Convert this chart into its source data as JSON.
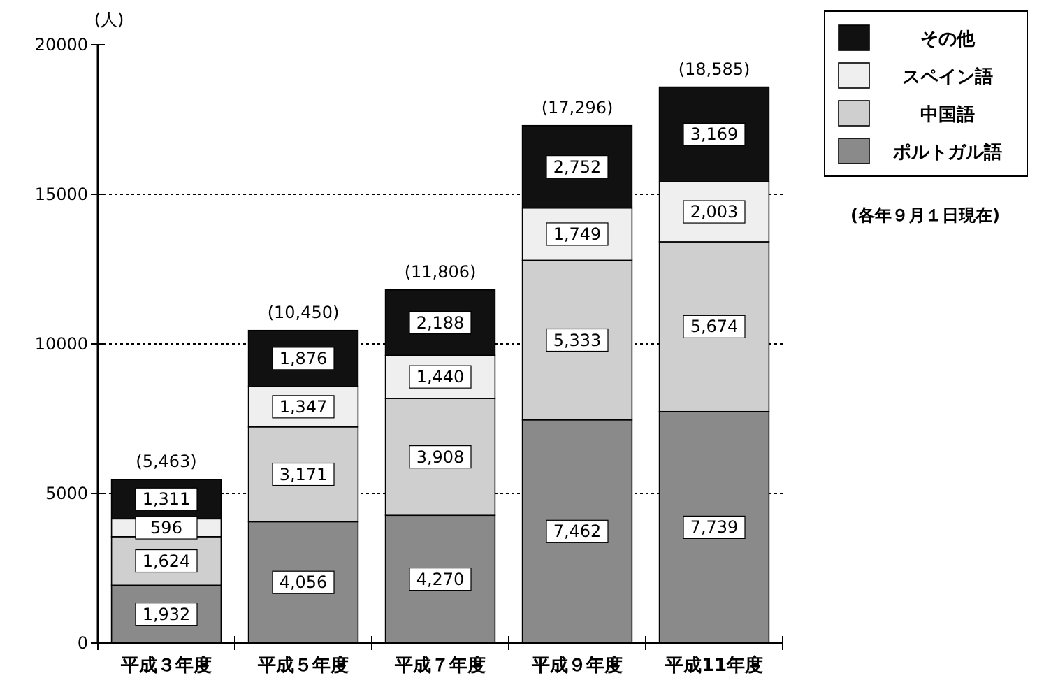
{
  "chart_data": {
    "type": "bar",
    "stacked": true,
    "ylabel": "(人)",
    "categories": [
      "平成３年度",
      "平成５年度",
      "平成７年度",
      "平成９年度",
      "平成11年度"
    ],
    "series": [
      {
        "name": "ポルトガル語",
        "color": "#8a8a8a",
        "values": [
          1932,
          4056,
          4270,
          7462,
          7739
        ],
        "value_labels": [
          "1,932",
          "4,056",
          "4,270",
          "7,462",
          "7,739"
        ]
      },
      {
        "name": "中国語",
        "color": "#cfcfcf",
        "values": [
          1624,
          3171,
          3908,
          5333,
          5674
        ],
        "value_labels": [
          "1,624",
          "3,171",
          "3,908",
          "5,333",
          "5,674"
        ]
      },
      {
        "name": "スペイン語",
        "color": "#efefef",
        "values": [
          596,
          1347,
          1440,
          1749,
          2003
        ],
        "value_labels": [
          "596",
          "1,347",
          "1,440",
          "1,749",
          "2,003"
        ]
      },
      {
        "name": "その他",
        "color": "#111111",
        "values": [
          1311,
          1876,
          2188,
          2752,
          3169
        ],
        "value_labels": [
          "1,311",
          "1,876",
          "2,188",
          "2,752",
          "3,169"
        ]
      }
    ],
    "totals": [
      "(5,463)",
      "(10,450)",
      "(11,806)",
      "(17,296)",
      "(18,585)"
    ],
    "ylim": [
      0,
      20000
    ],
    "yticks": [
      0,
      5000,
      10000,
      15000,
      20000
    ],
    "grid": "y",
    "legend": "top right",
    "annotations": [
      "(各年９月１日現在)"
    ]
  }
}
